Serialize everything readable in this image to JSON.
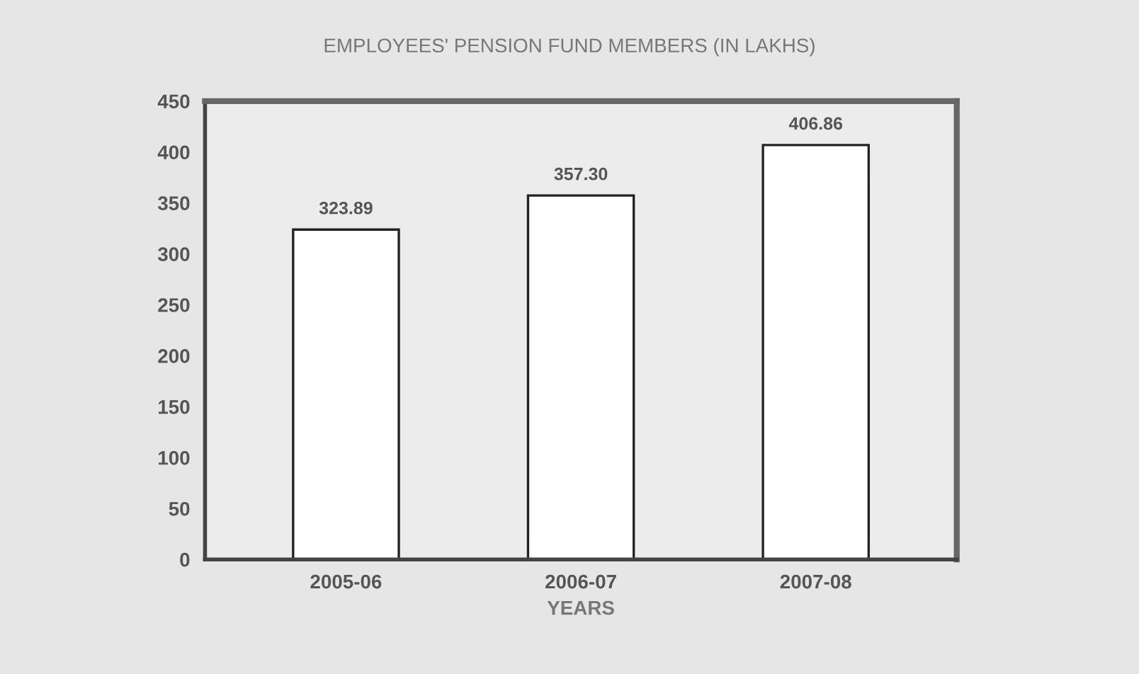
{
  "chart_data": {
    "type": "bar",
    "title": "EMPLOYEES' PENSION FUND MEMBERS (IN LAKHS)",
    "xlabel": "YEARS",
    "categories": [
      "2005-06",
      "2006-07",
      "2007-08"
    ],
    "values": [
      323.89,
      357.3,
      406.86
    ],
    "value_labels": [
      "323.89",
      "357.30",
      "406.86"
    ],
    "color": "#ffffff",
    "ylim": [
      0,
      450
    ],
    "yticks": [
      0,
      50,
      100,
      150,
      200,
      250,
      300,
      350,
      400,
      450
    ],
    "grid": false,
    "legend": false
  }
}
